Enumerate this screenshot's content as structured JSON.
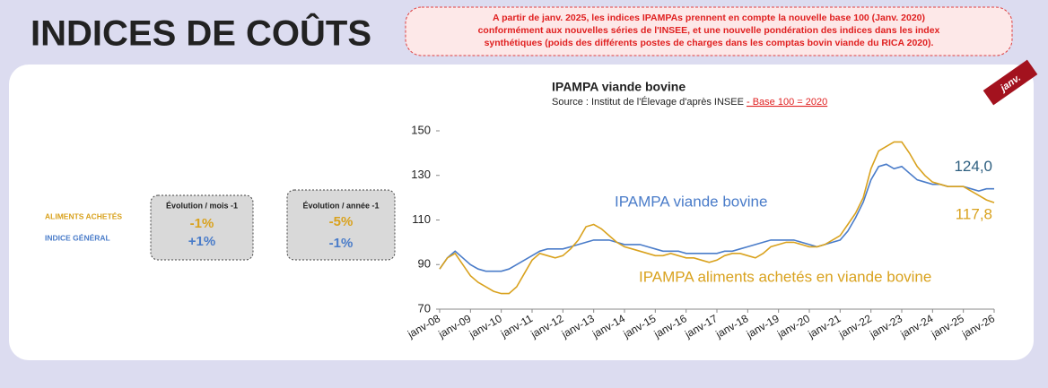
{
  "header": {
    "title": "INDICES DE COÛTS",
    "notice": [
      "A partir de janv. 2025, les indices IPAMPAs prennent en compte la nouvelle base 100 (Janv. 2020)",
      "conformément aux nouvelles séries de l'INSEE, et une nouvelle pondération des indices dans les index",
      "synthétiques (poids des différents postes de charges dans les comptas bovin viande du RICA 2020)."
    ],
    "ribbon": "janv."
  },
  "summary": {
    "rows": [
      "ALIMENTS ACHETÉS",
      "INDICE GÉNÉRAL"
    ],
    "boxes": [
      {
        "title": "Évolution / mois -1",
        "values": [
          "-1%",
          "+1%"
        ]
      },
      {
        "title": "Évolution / année -1",
        "values": [
          "-5%",
          "-1%"
        ]
      }
    ]
  },
  "chart_data": {
    "type": "line",
    "title": "IPAMPA viande bovine",
    "subtitle": "Source : Institut de l'Élevage d'après INSEE ",
    "subtitle_note": "- Base 100 = 2020",
    "categories": [
      "janv-08",
      null,
      null,
      null,
      "janv-09",
      null,
      null,
      null,
      "janv-10",
      null,
      null,
      null,
      "janv-11",
      null,
      null,
      null,
      "janv-12",
      null,
      null,
      null,
      "janv-13",
      null,
      null,
      null,
      "janv-14",
      null,
      null,
      null,
      "janv-15",
      null,
      null,
      null,
      "janv-16",
      null,
      null,
      null,
      "janv-17",
      null,
      null,
      null,
      "janv-18",
      null,
      null,
      null,
      "janv-19",
      null,
      null,
      null,
      "janv-20",
      null,
      null,
      null,
      "janv-21",
      null,
      null,
      null,
      "janv-22",
      null,
      null,
      null,
      "janv-23",
      null,
      null,
      null,
      "janv-24",
      null,
      null,
      null,
      "janv-25",
      null,
      null,
      null,
      "janv-26"
    ],
    "series": [
      {
        "name": "IPAMPA viande bovine",
        "color": "#4a7cc9",
        "end_label": "124,0",
        "values": [
          88,
          93,
          96,
          93,
          90,
          88,
          87,
          87,
          87,
          88,
          90,
          92,
          94,
          96,
          97,
          97,
          97,
          98,
          99,
          100,
          101,
          101,
          101,
          100,
          99,
          99,
          99,
          98,
          97,
          96,
          96,
          96,
          95,
          95,
          95,
          95,
          95,
          96,
          96,
          97,
          98,
          99,
          100,
          101,
          101,
          101,
          101,
          100,
          99,
          98,
          99,
          100,
          101,
          105,
          111,
          118,
          128,
          134,
          135,
          133,
          134,
          131,
          128,
          127,
          126,
          126,
          125,
          125,
          125,
          124,
          123,
          124,
          124.0
        ]
      },
      {
        "name": "IPAMPA aliments achetés en viande bovine",
        "color": "#d9a21e",
        "end_label": "117,8",
        "values": [
          88,
          93,
          95,
          90,
          85,
          82,
          80,
          78,
          77,
          77,
          80,
          86,
          92,
          95,
          94,
          93,
          94,
          97,
          101,
          107,
          108,
          106,
          103,
          100,
          98,
          97,
          96,
          95,
          94,
          94,
          95,
          94,
          93,
          93,
          92,
          91,
          92,
          94,
          95,
          95,
          94,
          93,
          95,
          98,
          99,
          100,
          100,
          99,
          98,
          98,
          99,
          101,
          103,
          108,
          113,
          120,
          133,
          141,
          143,
          145,
          145,
          140,
          134,
          130,
          127,
          126,
          125,
          125,
          125,
          123,
          121,
          119,
          117.8
        ]
      }
    ],
    "ylim": [
      70,
      150
    ],
    "yticks": [
      70,
      90,
      110,
      130,
      150
    ],
    "grid": false
  }
}
